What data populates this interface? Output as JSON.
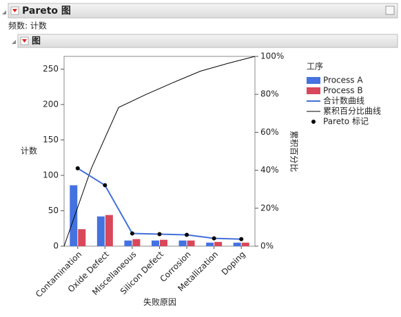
{
  "header": {
    "title": "Pareto 图",
    "subtitle": "频数: 计数",
    "section": "图"
  },
  "chart_data": {
    "type": "pareto",
    "categories": [
      "Contamination",
      "Oxide Defect",
      "Miscellaneous",
      "Silicon Defect",
      "Corrosion",
      "Metallization",
      "Doping"
    ],
    "series": [
      {
        "name": "Process A",
        "color": "#4472e0",
        "values": [
          86,
          42,
          8,
          8,
          8,
          5,
          5
        ]
      },
      {
        "name": "Process B",
        "color": "#d9475a",
        "values": [
          24,
          44,
          10,
          9,
          8,
          6,
          5
        ]
      }
    ],
    "total": {
      "name": "合计数曲线",
      "color": "#3f6fd8",
      "values": [
        110,
        86,
        18,
        17,
        16,
        11,
        10
      ]
    },
    "cumulative": {
      "name": "累积百分比曲线",
      "color": "#000000",
      "axis": "y2",
      "values": [
        41.0,
        73.1,
        79.9,
        86.2,
        92.2,
        96.3,
        100
      ]
    },
    "markers": {
      "name": "Pareto 标记",
      "color": "#000000"
    },
    "legend_title": "工序",
    "x_label": "失败原因",
    "y_label": "计数",
    "y2_label": "累积百分比",
    "ylim": [
      0,
      268
    ],
    "yticks": [
      0,
      50,
      100,
      150,
      200,
      250
    ],
    "y2lim": [
      0,
      100
    ],
    "y2ticks": [
      {
        "value": 0,
        "label": "0%"
      },
      {
        "value": 20,
        "label": "20%"
      },
      {
        "value": 40,
        "label": "40%"
      },
      {
        "value": 60,
        "label": "60%"
      },
      {
        "value": 80,
        "label": "80%"
      },
      {
        "value": 100,
        "label": "100%"
      }
    ]
  }
}
